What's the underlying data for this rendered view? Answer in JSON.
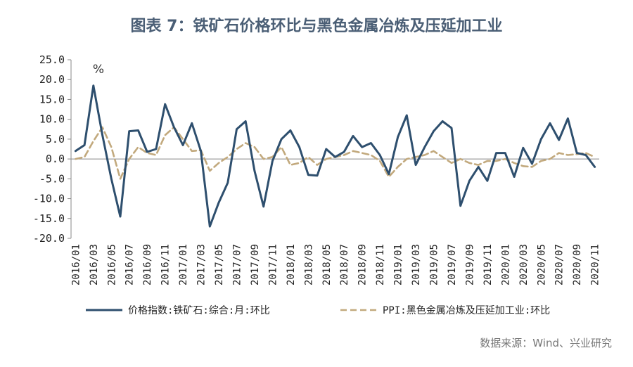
{
  "chart_data": {
    "type": "line",
    "title": "图表 7：铁矿石价格环比与黑色金属冶炼及压延加工业",
    "unit": "%",
    "ylim": [
      -20,
      25
    ],
    "yticks": [
      "25.0",
      "20.0",
      "15.0",
      "10.0",
      "5.0",
      "0.0",
      "-5.0",
      "-10.0",
      "-15.0",
      "-20.0"
    ],
    "x": [
      "2016/01",
      "2016/02",
      "2016/03",
      "2016/04",
      "2016/05",
      "2016/06",
      "2016/07",
      "2016/08",
      "2016/09",
      "2016/10",
      "2016/11",
      "2016/12",
      "2017/01",
      "2017/02",
      "2017/03",
      "2017/04",
      "2017/05",
      "2017/06",
      "2017/07",
      "2017/08",
      "2017/09",
      "2017/10",
      "2017/11",
      "2017/12",
      "2018/01",
      "2018/02",
      "2018/03",
      "2018/04",
      "2018/05",
      "2018/06",
      "2018/07",
      "2018/08",
      "2018/09",
      "2018/10",
      "2018/11",
      "2018/12",
      "2019/01",
      "2019/02",
      "2019/03",
      "2019/04",
      "2019/05",
      "2019/06",
      "2019/07",
      "2019/08",
      "2019/09",
      "2019/10",
      "2019/11",
      "2019/12",
      "2020/01",
      "2020/02",
      "2020/03",
      "2020/04",
      "2020/05",
      "2020/06",
      "2020/07",
      "2020/08",
      "2020/09",
      "2020/10",
      "2020/11"
    ],
    "xtick_labels": [
      "2016/01",
      "2016/03",
      "2016/05",
      "2016/07",
      "2016/09",
      "2016/11",
      "2017/01",
      "2017/03",
      "2017/05",
      "2017/07",
      "2017/09",
      "2017/11",
      "2018/01",
      "2018/03",
      "2018/05",
      "2018/07",
      "2018/09",
      "2018/11",
      "2019/01",
      "2019/03",
      "2019/05",
      "2019/07",
      "2019/09",
      "2019/11",
      "2020/01",
      "2020/03",
      "2020/05",
      "2020/07",
      "2020/09",
      "2020/11"
    ],
    "series": [
      {
        "name": "价格指数:铁矿石:综合:月:环比",
        "color": "#2e4f6e",
        "style": "solid",
        "values": [
          2.0,
          3.5,
          18.5,
          6.0,
          -5.0,
          -14.5,
          7.0,
          7.2,
          1.8,
          2.5,
          13.8,
          8.0,
          3.5,
          9.0,
          2.0,
          -17.0,
          -11.0,
          -6.0,
          7.5,
          9.5,
          -3.0,
          -12.0,
          -0.5,
          5.0,
          7.2,
          3.0,
          -4.0,
          -4.2,
          2.5,
          0.5,
          1.8,
          5.8,
          3.0,
          4.0,
          1.0,
          -3.8,
          5.5,
          11.0,
          -1.5,
          3.0,
          7.0,
          9.5,
          7.8,
          -11.8,
          -5.5,
          -2.0,
          -5.5,
          1.5,
          1.5,
          -4.5,
          2.8,
          -1.2,
          5.0,
          9.0,
          4.8,
          10.2,
          1.5,
          1.0,
          -2.0
        ]
      },
      {
        "name": "PPI:黑色金属冶炼及压延加工业:环比",
        "color": "#c2a97d",
        "style": "dashed",
        "values": [
          0.0,
          0.5,
          4.5,
          8.0,
          3.0,
          -5.0,
          0.0,
          3.0,
          1.5,
          1.0,
          6.0,
          8.0,
          5.0,
          2.0,
          2.2,
          -3.0,
          -1.0,
          0.5,
          2.5,
          4.0,
          3.0,
          0.0,
          0.5,
          3.0,
          -1.5,
          -1.0,
          0.5,
          -1.5,
          0.0,
          0.5,
          1.0,
          2.0,
          1.5,
          1.0,
          -0.5,
          -4.5,
          -2.0,
          0.0,
          0.5,
          1.0,
          2.0,
          0.5,
          -1.0,
          0.0,
          -1.0,
          -1.5,
          -0.5,
          -0.5,
          0.0,
          -1.0,
          -1.8,
          -2.0,
          -0.5,
          0.0,
          1.5,
          1.0,
          1.2,
          1.5,
          0.5
        ]
      }
    ],
    "legend_position": "bottom",
    "grid": false
  },
  "source_note": "数据来源：Wind、兴业研究"
}
